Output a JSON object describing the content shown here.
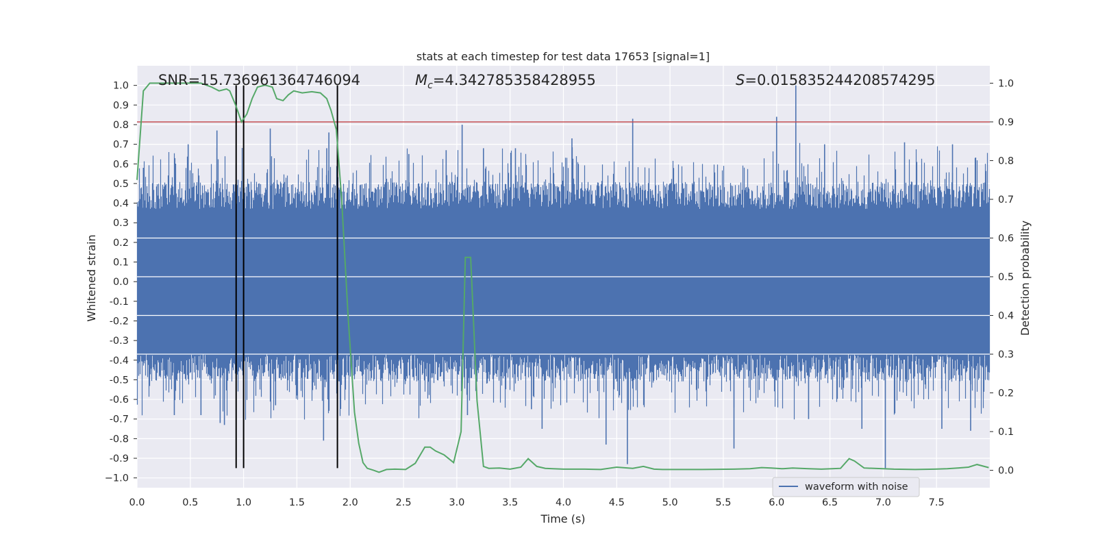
{
  "chart_data": {
    "type": "line",
    "title": "stats at each timestep for test data 17653 [signal=1]",
    "xlabel": "Time (s)",
    "ylabel": "Whitened strain",
    "ylabel_right": "Detection probability",
    "xlim": [
      0,
      8
    ],
    "ylim": [
      -1.05,
      1.1
    ],
    "ylim_right": [
      -0.045,
      1.045
    ],
    "x_ticks": [
      "0.0",
      "0.5",
      "1.0",
      "1.5",
      "2.0",
      "2.5",
      "3.0",
      "3.5",
      "4.0",
      "4.5",
      "5.0",
      "5.5",
      "6.0",
      "6.5",
      "7.0",
      "7.5"
    ],
    "x_tick_values": [
      0,
      0.5,
      1,
      1.5,
      2,
      2.5,
      3,
      3.5,
      4,
      4.5,
      5,
      5.5,
      6,
      6.5,
      7,
      7.5
    ],
    "y_ticks": [
      "1.0",
      "0.9",
      "0.8",
      "0.7",
      "0.6",
      "0.5",
      "0.4",
      "0.3",
      "0.2",
      "0.1",
      "0.0",
      "-0.1",
      "-0.2",
      "-0.3",
      "-0.4",
      "-0.5",
      "-0.6",
      "-0.7",
      "-0.8",
      "-0.9",
      "−1.0"
    ],
    "y_tick_values": [
      1.0,
      0.9,
      0.8,
      0.7,
      0.6,
      0.5,
      0.4,
      0.3,
      0.2,
      0.1,
      0.0,
      -0.1,
      -0.2,
      -0.3,
      -0.4,
      -0.5,
      -0.6,
      -0.7,
      -0.8,
      -0.9,
      -1.0
    ],
    "y_right_ticks": [
      "1.0",
      "0.9",
      "0.8",
      "0.7",
      "0.6",
      "0.5",
      "0.4",
      "0.3",
      "0.2",
      "0.1",
      "0.0"
    ],
    "y_right_tick_values": [
      1.0,
      0.9,
      0.8,
      0.7,
      0.6,
      0.5,
      0.4,
      0.3,
      0.2,
      0.1,
      0.0
    ],
    "annotations": {
      "snr": "SNR=15.736961364746094",
      "mc_symbol": "M",
      "mc_sub": "c",
      "mc_value": "=4.342785358428955",
      "s_symbol": "S",
      "s_value": "=0.015835244208574295"
    },
    "legend": {
      "label": "waveform with noise",
      "placement": "lower-right"
    },
    "threshold_right": 0.9,
    "vertical_lines_x": [
      0.93,
      1.0,
      1.88
    ],
    "series": [
      {
        "name": "waveform with noise",
        "axis": "left",
        "color": "#4c72b0",
        "description": "dense noise band",
        "core_band": [
          -0.37,
          0.37
        ],
        "spikes": [
          [
            0.06,
            0.58
          ],
          [
            0.35,
            -0.68
          ],
          [
            0.48,
            0.7
          ],
          [
            0.6,
            -0.68
          ],
          [
            0.75,
            0.77
          ],
          [
            0.78,
            -0.72
          ],
          [
            0.82,
            -0.73
          ],
          [
            0.93,
            0.6
          ],
          [
            1.0,
            -0.69
          ],
          [
            1.25,
            0.78
          ],
          [
            1.3,
            -0.63
          ],
          [
            1.5,
            -0.58
          ],
          [
            1.75,
            -0.81
          ],
          [
            1.78,
            0.68
          ],
          [
            1.8,
            0.76
          ],
          [
            2.55,
            0.65
          ],
          [
            2.9,
            0.67
          ],
          [
            3.05,
            0.8
          ],
          [
            3.1,
            -0.68
          ],
          [
            3.25,
            0.68
          ],
          [
            3.55,
            0.68
          ],
          [
            3.7,
            -0.65
          ],
          [
            3.8,
            -0.75
          ],
          [
            4.08,
            0.73
          ],
          [
            4.4,
            -0.83
          ],
          [
            4.6,
            -0.93
          ],
          [
            4.65,
            0.83
          ],
          [
            5.6,
            -0.85
          ],
          [
            6.0,
            0.84
          ],
          [
            6.18,
            1.0
          ],
          [
            6.3,
            -0.7
          ],
          [
            6.45,
            0.7
          ],
          [
            6.8,
            -0.75
          ],
          [
            7.02,
            -0.95
          ],
          [
            7.2,
            0.71
          ],
          [
            7.55,
            -0.75
          ],
          [
            7.65,
            0.7
          ],
          [
            7.82,
            -0.76
          ]
        ]
      },
      {
        "name": "detection probability",
        "axis": "right",
        "color": "#55a868",
        "x": [
          0.0,
          0.06,
          0.12,
          0.25,
          0.4,
          0.6,
          0.7,
          0.77,
          0.84,
          0.87,
          0.93,
          0.98,
          1.03,
          1.08,
          1.13,
          1.2,
          1.27,
          1.31,
          1.37,
          1.42,
          1.47,
          1.55,
          1.64,
          1.72,
          1.78,
          1.82,
          1.87,
          1.92,
          1.98,
          2.04,
          2.08,
          2.12,
          2.16,
          2.22,
          2.27,
          2.34,
          2.42,
          2.52,
          2.61,
          2.7,
          2.75,
          2.8,
          2.88,
          2.97,
          3.04,
          3.08,
          3.13,
          3.19,
          3.25,
          3.3,
          3.4,
          3.5,
          3.6,
          3.67,
          3.75,
          3.83,
          3.9,
          4.0,
          4.1,
          4.2,
          4.35,
          4.5,
          4.65,
          4.75,
          4.85,
          4.93,
          5.1,
          5.3,
          5.6,
          5.75,
          5.86,
          5.95,
          6.05,
          6.15,
          6.3,
          6.42,
          6.52,
          6.6,
          6.68,
          6.73,
          6.82,
          7.0,
          7.1,
          7.3,
          7.48,
          7.6,
          7.7,
          7.8,
          7.88,
          7.99
        ],
        "y": [
          0.75,
          0.98,
          1.0,
          1.0,
          1.0,
          1.0,
          0.99,
          0.98,
          0.985,
          0.98,
          0.94,
          0.9,
          0.92,
          0.96,
          0.99,
          0.995,
          0.99,
          0.96,
          0.955,
          0.97,
          0.98,
          0.975,
          0.978,
          0.975,
          0.96,
          0.93,
          0.88,
          0.7,
          0.4,
          0.15,
          0.07,
          0.02,
          0.005,
          0.0,
          -0.005,
          0.002,
          0.003,
          0.002,
          0.018,
          0.06,
          0.06,
          0.05,
          0.04,
          0.02,
          0.1,
          0.55,
          0.55,
          0.18,
          0.01,
          0.005,
          0.006,
          0.003,
          0.008,
          0.03,
          0.01,
          0.005,
          0.004,
          0.003,
          0.003,
          0.003,
          0.002,
          0.008,
          0.005,
          0.01,
          0.003,
          0.002,
          0.002,
          0.002,
          0.003,
          0.004,
          0.007,
          0.006,
          0.004,
          0.006,
          0.004,
          0.003,
          0.004,
          0.005,
          0.03,
          0.024,
          0.006,
          0.004,
          0.003,
          0.002,
          0.003,
          0.004,
          0.006,
          0.008,
          0.015,
          0.007
        ]
      }
    ]
  }
}
